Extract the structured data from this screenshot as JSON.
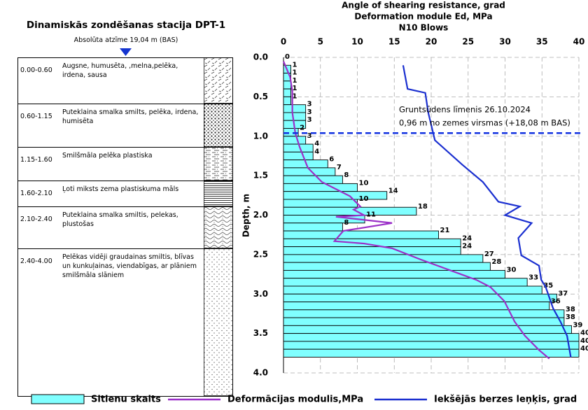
{
  "log": {
    "title": "Dinamiskās zondēšanas stacija DPT-1",
    "elevation": "Absolūta atzīme 19,04 m (BAS)",
    "rows": [
      {
        "depth": "0.00-0.60",
        "description": "Augsne, humusēta, ,melna,pelēka, irdena, sausa"
      },
      {
        "depth": "0.60-1.15",
        "description": "Puteklaina smalka smilts, pelēka, irdena, humisēta"
      },
      {
        "depth": "1.15-1.60",
        "description": "Smilšmāla pelēka plastiska"
      },
      {
        "depth": "1.60-2.10",
        "description": "Ļoti miksts zema plastiskuma māls"
      },
      {
        "depth": "2.10-2.40",
        "description": "Puteklaina smalka smiltis, pelekas, plustošas"
      },
      {
        "depth": "2.40-4.00",
        "description": "Pelēkas vidēji graudainas smiltis, blīvas un kunkuļainas, viendabīgas, ar plāniem smilšmāla slāniem"
      }
    ]
  },
  "chart_data": {
    "type": "bar",
    "orientation": "horizontal",
    "titles": [
      "Angle of shearing resistance, grad",
      "Deformation module Ed, MPa",
      "N10 Blows"
    ],
    "ylabel": "Depth, m",
    "xlim": [
      0,
      40
    ],
    "xticks": [
      0,
      5,
      10,
      15,
      20,
      25,
      30,
      35,
      40
    ],
    "ylim": [
      0,
      4
    ],
    "yticks": [
      {
        "value": 0,
        "label": "0.0"
      },
      {
        "value": 0.5,
        "label": "0.5"
      },
      {
        "value": 1,
        "label": "1.0"
      },
      {
        "value": 1.5,
        "label": "1.5"
      },
      {
        "value": 2,
        "label": "2.0"
      },
      {
        "value": 2.5,
        "label": "2.5"
      },
      {
        "value": 3,
        "label": "3.0"
      },
      {
        "value": 3.5,
        "label": "3.5"
      },
      {
        "value": 4,
        "label": "4.0"
      }
    ],
    "grid": true,
    "legend": "bottom",
    "groundwater": {
      "depth": 0.96,
      "color": "#1030e0",
      "labels": [
        "Gruntsūdens līmenis 26.10.2024",
        "0,96 m no zemes virsmas (+18,08 m BAS)"
      ]
    },
    "series": [
      {
        "name": "Sitienu skaits",
        "type": "bar",
        "color": "#80ffff",
        "depths": [
          0,
          0.1,
          0.2,
          0.3,
          0.4,
          0.5,
          0.6,
          0.7,
          0.8,
          0.9,
          1,
          1.1,
          1.2,
          1.3,
          1.4,
          1.5,
          1.6,
          1.7,
          1.8,
          1.9,
          2,
          2.1,
          2.2,
          2.3,
          2.4,
          2.5,
          2.6,
          2.7,
          2.8,
          2.9,
          3,
          3.1,
          3.2,
          3.3,
          3.4,
          3.5,
          3.6,
          3.7
        ],
        "values": [
          0,
          1,
          1,
          1,
          1,
          1,
          3,
          3,
          3,
          2,
          3,
          4,
          4,
          6,
          7,
          8,
          10,
          14,
          10,
          18,
          11,
          8,
          21,
          24,
          24,
          27,
          28,
          30,
          33,
          35,
          37,
          36,
          38,
          38,
          39,
          40,
          40,
          40
        ]
      },
      {
        "name": "Deformācijas modulis,MPa",
        "type": "line",
        "color": "#9b30c8",
        "depths": [
          0.05,
          0.25,
          0.43,
          0.7,
          0.96,
          1.14,
          1.4,
          1.58,
          1.67,
          1.76,
          1.89,
          1.93,
          2,
          2.02,
          2.1,
          2.2,
          2.33,
          2.36,
          2.42,
          2.56,
          2.69,
          2.82,
          2.91,
          3.09,
          3.35,
          3.53,
          3.71,
          3.82
        ],
        "values": [
          0,
          0.9,
          1.2,
          1.2,
          1.6,
          2.2,
          3.3,
          5.2,
          7.1,
          9,
          10.4,
          9.5,
          10.9,
          7.1,
          14.7,
          8.1,
          6.9,
          10.9,
          14.7,
          18.5,
          22.3,
          26.1,
          28,
          29.9,
          31.3,
          32.7,
          34.6,
          36
        ]
      },
      {
        "name": "Iekšējās berzes leņķis, grad",
        "type": "line",
        "color": "#1a2fd0",
        "depths": [
          0.1,
          0.4,
          0.45,
          0.7,
          1.05,
          1.36,
          1.58,
          1.83,
          1.89,
          2,
          2.1,
          2.29,
          2.51,
          2.64,
          2.82,
          2.91,
          3.18,
          3.35,
          3.53,
          3.8
        ],
        "values": [
          16.2,
          16.8,
          19.2,
          19.6,
          20.5,
          24.2,
          27,
          29.1,
          32,
          30,
          33.6,
          31.8,
          32.2,
          34.6,
          34.9,
          35.5,
          36.5,
          37.5,
          38.4,
          38.9
        ]
      }
    ]
  }
}
